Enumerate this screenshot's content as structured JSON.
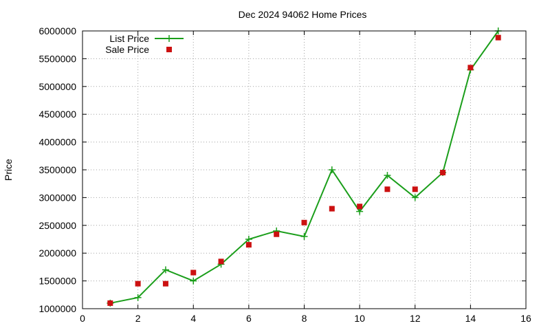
{
  "chart_data": {
    "type": "line",
    "title": "Dec 2024 94062 Home Prices",
    "xlabel": "",
    "ylabel": "Price",
    "xlim": [
      0,
      16
    ],
    "ylim": [
      1000000,
      6000000
    ],
    "x_ticks": [
      0,
      2,
      4,
      6,
      8,
      10,
      12,
      14,
      16
    ],
    "y_ticks": [
      1000000,
      1500000,
      2000000,
      2500000,
      3000000,
      3500000,
      4000000,
      4500000,
      5000000,
      5500000,
      6000000
    ],
    "grid": true,
    "legend_position": "top-left",
    "series": [
      {
        "name": "List Price",
        "kind": "line+points",
        "marker": "plus",
        "color": "#1a9e1a",
        "points": [
          [
            1,
            1100000
          ],
          [
            2,
            1200000
          ],
          [
            3,
            1700000
          ],
          [
            4,
            1500000
          ],
          [
            5,
            1800000
          ],
          [
            6,
            2250000
          ],
          [
            7,
            2400000
          ],
          [
            8,
            2300000
          ],
          [
            9,
            3500000
          ],
          [
            10,
            2750000
          ],
          [
            11,
            3400000
          ],
          [
            12,
            3000000
          ],
          [
            13,
            3450000
          ],
          [
            14,
            5300000
          ],
          [
            15,
            6000000
          ]
        ]
      },
      {
        "name": "Sale Price",
        "kind": "points",
        "marker": "square",
        "color": "#cc1111",
        "points": [
          [
            1,
            1100000
          ],
          [
            2,
            1450000
          ],
          [
            3,
            1450000
          ],
          [
            4,
            1650000
          ],
          [
            5,
            1850000
          ],
          [
            6,
            2150000
          ],
          [
            7,
            2340000
          ],
          [
            8,
            2550000
          ],
          [
            9,
            2800000
          ],
          [
            10,
            2840000
          ],
          [
            11,
            3150000
          ],
          [
            12,
            3150000
          ],
          [
            13,
            3450000
          ],
          [
            14,
            5340000
          ],
          [
            15,
            5880000
          ]
        ]
      }
    ]
  }
}
